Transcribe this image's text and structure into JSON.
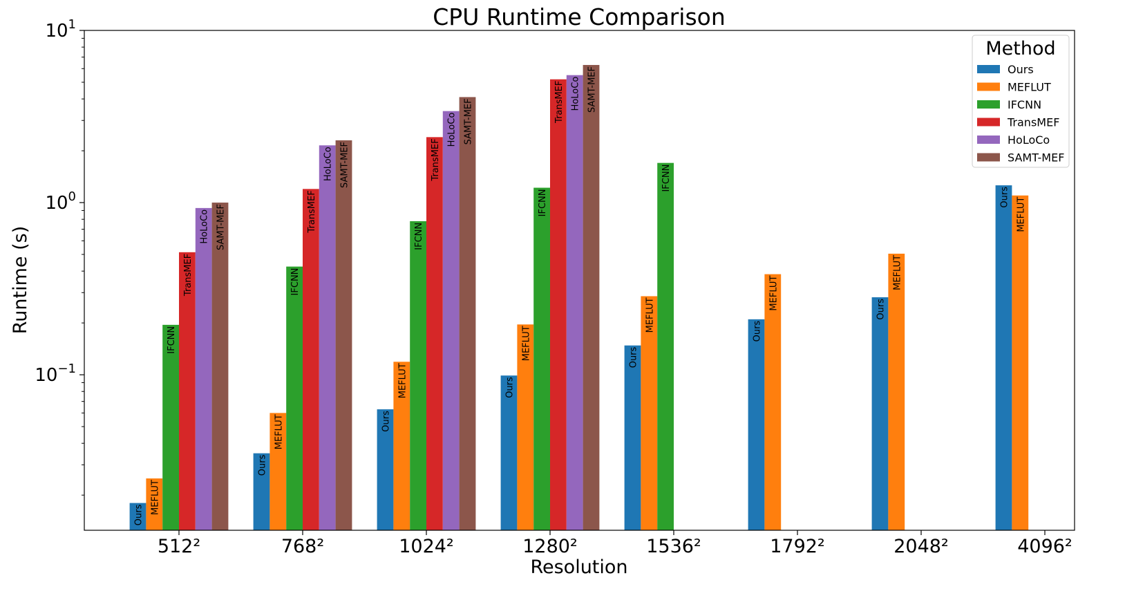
{
  "chart_data": {
    "type": "bar",
    "title": "CPU Runtime Comparison",
    "xlabel": "Resolution",
    "ylabel": "Runtime (s)",
    "yscale": "log",
    "ylim": [
      0.0125,
      10
    ],
    "yticks": [
      {
        "value": 0.1,
        "base": "10",
        "exp": "−1"
      },
      {
        "value": 1,
        "base": "10",
        "exp": "0"
      },
      {
        "value": 10,
        "base": "10",
        "exp": "1"
      }
    ],
    "categories": [
      "512²",
      "768²",
      "1024²",
      "1280²",
      "1536²",
      "1792²",
      "2048²",
      "4096²"
    ],
    "series": [
      {
        "name": "Ours",
        "color": "#1f77b4",
        "values": [
          0.018,
          0.035,
          0.063,
          0.099,
          0.148,
          0.21,
          0.282,
          1.26
        ]
      },
      {
        "name": "MEFLUT",
        "color": "#ff7f0e",
        "values": [
          0.025,
          0.06,
          0.119,
          0.196,
          0.286,
          0.384,
          0.505,
          1.1
        ]
      },
      {
        "name": "IFCNN",
        "color": "#2ca02c",
        "values": [
          0.195,
          0.425,
          0.78,
          1.22,
          1.7,
          null,
          null,
          null
        ]
      },
      {
        "name": "TransMEF",
        "color": "#d62728",
        "values": [
          0.515,
          1.2,
          2.4,
          5.2,
          null,
          null,
          null,
          null
        ]
      },
      {
        "name": "HoLoCo",
        "color": "#9467bd",
        "values": [
          0.93,
          2.15,
          3.4,
          5.5,
          null,
          null,
          null,
          null
        ]
      },
      {
        "name": "SAMT-MEF",
        "color": "#8c564b",
        "values": [
          1.0,
          2.3,
          4.1,
          6.3,
          null,
          null,
          null,
          null
        ]
      }
    ],
    "legend": {
      "title": "Method",
      "placement": "top-right"
    },
    "grid": false
  }
}
